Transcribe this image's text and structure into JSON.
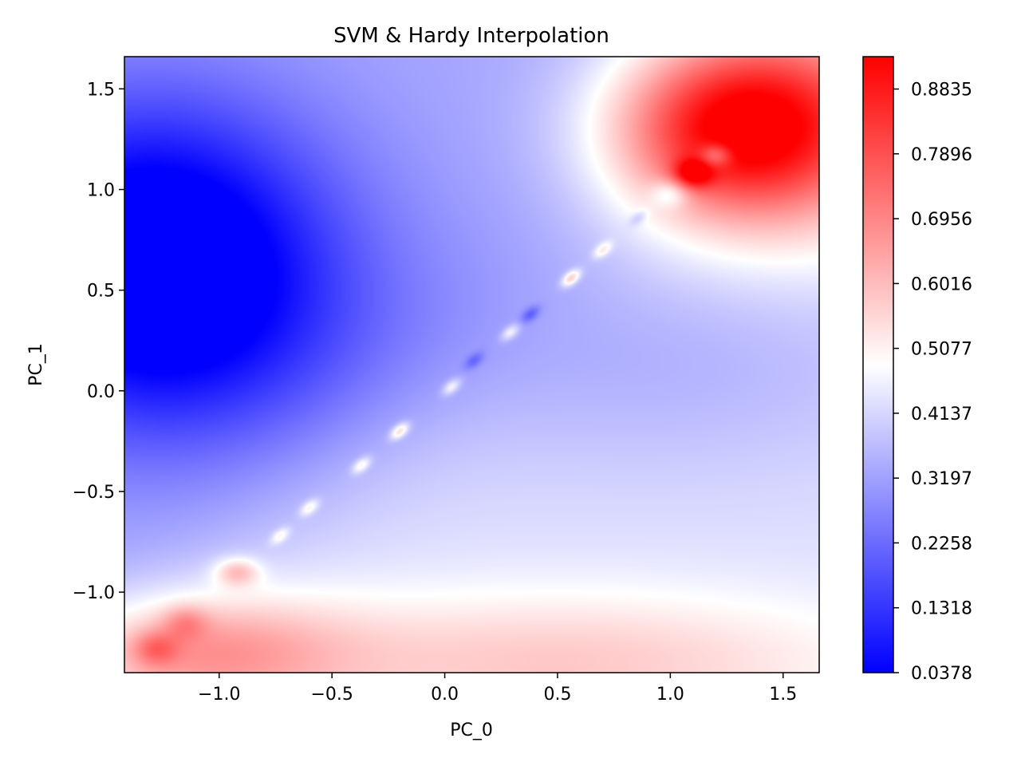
{
  "chart_data": {
    "type": "heatmap",
    "title": "SVM & Hardy Interpolation",
    "xlabel": "PC_0",
    "ylabel": "PC_1",
    "xlim": [
      -1.42,
      1.66
    ],
    "ylim": [
      -1.4,
      1.66
    ],
    "x_ticks": [
      -1.0,
      -0.5,
      0.0,
      0.5,
      1.0,
      1.5
    ],
    "x_tick_labels": [
      "−1.0",
      "−0.5",
      "0.0",
      "0.5",
      "1.0",
      "1.5"
    ],
    "y_ticks": [
      -1.0,
      -0.5,
      0.0,
      0.5,
      1.0,
      1.5
    ],
    "y_tick_labels": [
      "−1.0",
      "−0.5",
      "0.0",
      "0.5",
      "1.0",
      "1.5"
    ],
    "colormap": "bwr",
    "colormap_stops": [
      "#0000ff",
      "#ffffff",
      "#ff0000"
    ],
    "colorbar": {
      "min": 0.0378,
      "max": 0.9304,
      "ticks": [
        0.0378,
        0.1318,
        0.2258,
        0.3197,
        0.4137,
        0.5077,
        0.6016,
        0.6956,
        0.7896,
        0.8835
      ],
      "tick_labels": [
        "0.0378",
        "0.1318",
        "0.2258",
        "0.3197",
        "0.4137",
        "0.5077",
        "0.6016",
        "0.6956",
        "0.7896",
        "0.8835"
      ]
    },
    "field": {
      "base": 0.38,
      "boundary_slope": 0.9,
      "boundary_intercept": 0.1,
      "blobs": [
        {
          "x": -1.3,
          "y": 0.68,
          "amp": -0.36,
          "sx": 0.55,
          "sy": 0.55
        },
        {
          "x": -1.1,
          "y": 0.3,
          "amp": -0.1,
          "sx": 0.6,
          "sy": 0.5
        },
        {
          "x": 1.25,
          "y": 1.3,
          "amp": 0.42,
          "sx": 0.38,
          "sy": 0.3
        },
        {
          "x": 1.55,
          "y": 1.4,
          "amp": 0.25,
          "sx": 0.45,
          "sy": 0.45
        },
        {
          "x": 1.1,
          "y": 1.08,
          "amp": 0.25,
          "sx": 0.06,
          "sy": 0.05
        },
        {
          "x": 1.2,
          "y": 1.17,
          "amp": -0.18,
          "sx": 0.05,
          "sy": 0.04
        },
        {
          "x": -1.1,
          "y": -1.3,
          "amp": 0.22,
          "sx": 0.45,
          "sy": 0.2
        },
        {
          "x": 0.5,
          "y": -1.35,
          "amp": 0.15,
          "sx": 1.0,
          "sy": 0.25
        },
        {
          "x": -0.92,
          "y": -0.9,
          "amp": 0.18,
          "sx": 0.07,
          "sy": 0.05
        },
        {
          "x": -1.15,
          "y": -1.15,
          "amp": 0.12,
          "sx": 0.07,
          "sy": 0.06
        },
        {
          "x": -1.28,
          "y": -1.28,
          "amp": 0.14,
          "sx": 0.07,
          "sy": 0.06
        },
        {
          "x": 1.0,
          "y": 0.98,
          "amp": -0.15,
          "sx": 0.06,
          "sy": 0.05
        },
        {
          "x": 0.95,
          "y": 0.15,
          "amp": -0.08,
          "sx": 0.9,
          "sy": 0.4
        }
      ],
      "diagonal_points": [
        {
          "x": -0.73,
          "y": -0.72,
          "amp": 0.12
        },
        {
          "x": -0.6,
          "y": -0.58,
          "amp": 0.14
        },
        {
          "x": -0.37,
          "y": -0.37,
          "amp": 0.15
        },
        {
          "x": -0.2,
          "y": -0.2,
          "amp": 0.2
        },
        {
          "x": 0.03,
          "y": 0.02,
          "amp": 0.14
        },
        {
          "x": 0.13,
          "y": 0.15,
          "amp": -0.1
        },
        {
          "x": 0.29,
          "y": 0.29,
          "amp": 0.14
        },
        {
          "x": 0.38,
          "y": 0.38,
          "amp": -0.12
        },
        {
          "x": 0.56,
          "y": 0.56,
          "amp": 0.22
        },
        {
          "x": 0.7,
          "y": 0.7,
          "amp": 0.14
        },
        {
          "x": 0.86,
          "y": 0.86,
          "amp": -0.08
        }
      ]
    }
  }
}
